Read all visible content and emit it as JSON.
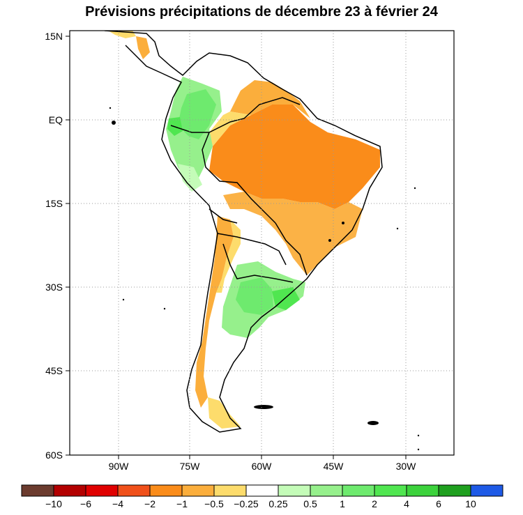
{
  "title": "Prévisions précipitations de décembre 23 à février 24",
  "map": {
    "lat_labels": [
      "15N",
      "EQ",
      "15S",
      "30S",
      "45S",
      "60S"
    ],
    "lon_labels": [
      "90W",
      "75W",
      "60W",
      "45W",
      "30W"
    ],
    "gridlines": "dotted"
  },
  "colorbar": {
    "colors": [
      "#6b3b2e",
      "#b30000",
      "#e00000",
      "#f0501a",
      "#fa8c1a",
      "#fbae3c",
      "#fddc6c",
      "#ffffff",
      "#c4fcb8",
      "#96f08c",
      "#6eea6e",
      "#50e650",
      "#3cd23c",
      "#1fa01f",
      "#1e5ae6"
    ],
    "labels": [
      "−10",
      "−6",
      "−4",
      "−2",
      "−1",
      "−0.5",
      "−0.25",
      "0.25",
      "0.5",
      "1",
      "2",
      "4",
      "6",
      "10"
    ]
  }
}
